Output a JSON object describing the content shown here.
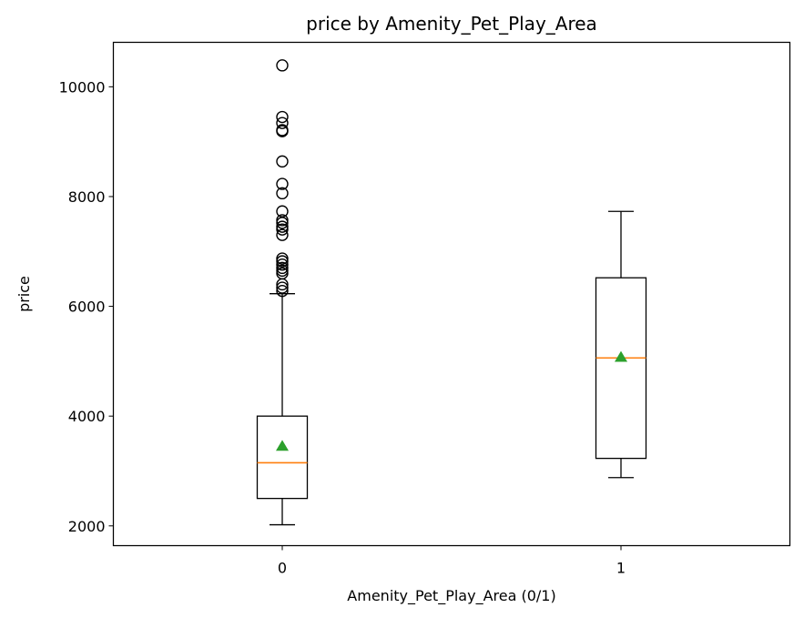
{
  "chart_data": {
    "type": "box",
    "title": "price by Amenity_Pet_Play_Area",
    "xlabel": "Amenity_Pet_Play_Area (0/1)",
    "ylabel": "price",
    "categories": [
      "0",
      "1"
    ],
    "ylim": [
      1640,
      10810
    ],
    "yticks": [
      2000,
      4000,
      6000,
      8000,
      10000
    ],
    "ytick_labels": [
      "2000",
      "4000",
      "6000",
      "8000",
      "10000"
    ],
    "boxes": [
      {
        "category": "0",
        "whisker_low": 2020,
        "q1": 2500,
        "median": 3150,
        "q3": 4000,
        "whisker_high": 6230,
        "mean": 3450,
        "outliers": [
          6280,
          6340,
          6400,
          6600,
          6650,
          6700,
          6760,
          6820,
          6870,
          7300,
          7400,
          7450,
          7520,
          7570,
          7730,
          8060,
          8230,
          8640,
          9190,
          9210,
          9340,
          9450,
          10390
        ]
      },
      {
        "category": "1",
        "whisker_low": 2880,
        "q1": 3230,
        "median": 5060,
        "q3": 6520,
        "whisker_high": 7730,
        "mean": 5070,
        "outliers": []
      }
    ],
    "colors": {
      "box": "#000000",
      "median": "#ff7f0e",
      "mean_marker": "#2ca02c"
    },
    "grid": false,
    "legend": "none"
  }
}
